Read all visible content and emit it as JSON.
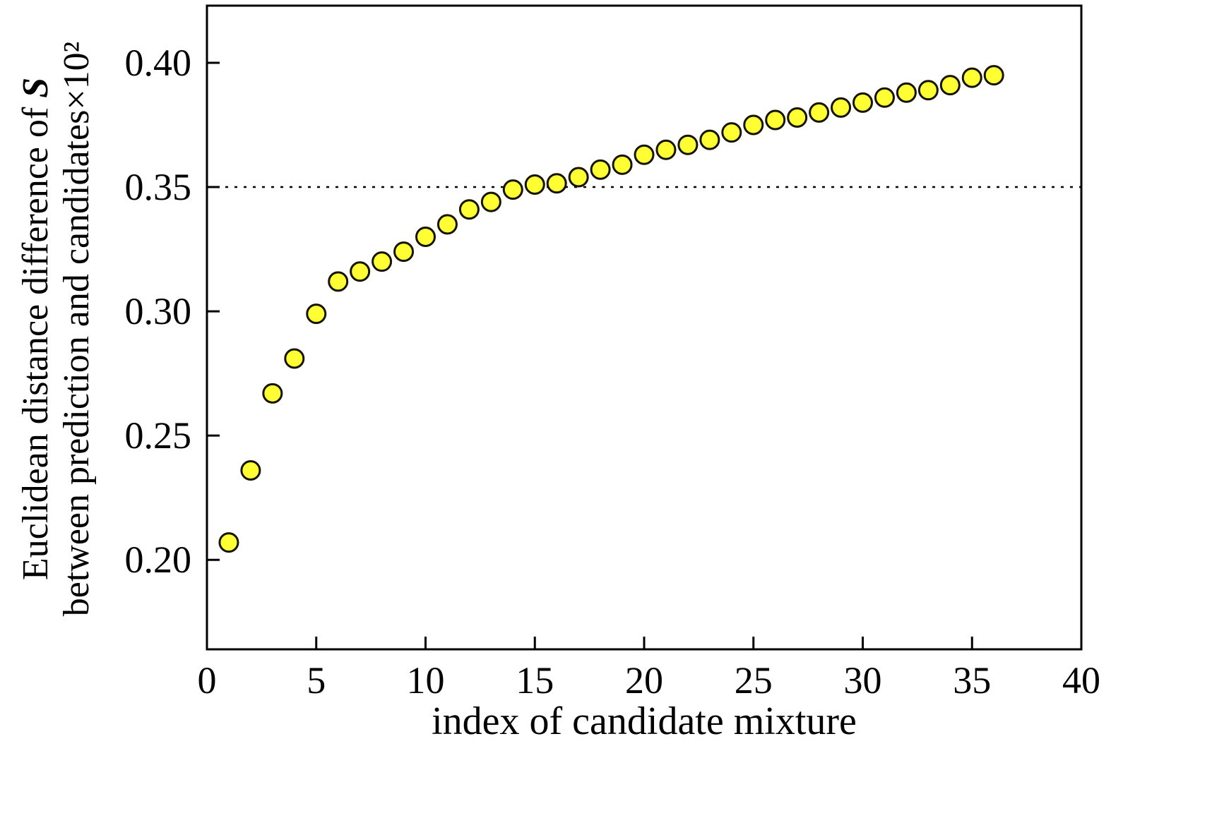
{
  "chart_data": {
    "type": "scatter",
    "title": "",
    "xlabel": "index of candidate mixture",
    "ylabel_line1_prefix": "Euclidean distance difference of ",
    "ylabel_line1_S": "S",
    "ylabel_line2": "between prediction and candidates×10²",
    "x": [
      1,
      2,
      3,
      4,
      5,
      6,
      7,
      8,
      9,
      10,
      11,
      12,
      13,
      14,
      15,
      16,
      17,
      18,
      19,
      20,
      21,
      22,
      23,
      24,
      25,
      26,
      27,
      28,
      29,
      30,
      31,
      32,
      33,
      34,
      35,
      36
    ],
    "y": [
      0.207,
      0.236,
      0.267,
      0.281,
      0.299,
      0.312,
      0.316,
      0.32,
      0.324,
      0.33,
      0.335,
      0.341,
      0.344,
      0.349,
      0.351,
      0.3515,
      0.354,
      0.357,
      0.359,
      0.363,
      0.365,
      0.367,
      0.369,
      0.372,
      0.375,
      0.377,
      0.378,
      0.38,
      0.382,
      0.384,
      0.386,
      0.388,
      0.389,
      0.391,
      0.394,
      0.395
    ],
    "xlim": [
      0,
      40
    ],
    "ylim": [
      0.164,
      0.423
    ],
    "x_ticks": [
      0,
      5,
      10,
      15,
      20,
      25,
      30,
      35,
      40
    ],
    "x_tick_labels": [
      "0",
      "5",
      "10",
      "15",
      "20",
      "25",
      "30",
      "35",
      "40"
    ],
    "y_ticks": [
      0.2,
      0.25,
      0.3,
      0.35,
      0.4
    ],
    "y_tick_labels": [
      "0.20",
      "0.25",
      "0.30",
      "0.35",
      "0.40"
    ],
    "reference_line_y": 0.35,
    "grid": false,
    "legend": "none",
    "marker_fill_color": "#ffff33",
    "marker_stroke_color": "#141400",
    "frame_color": "#000000",
    "reference_line_color": "#000000"
  }
}
